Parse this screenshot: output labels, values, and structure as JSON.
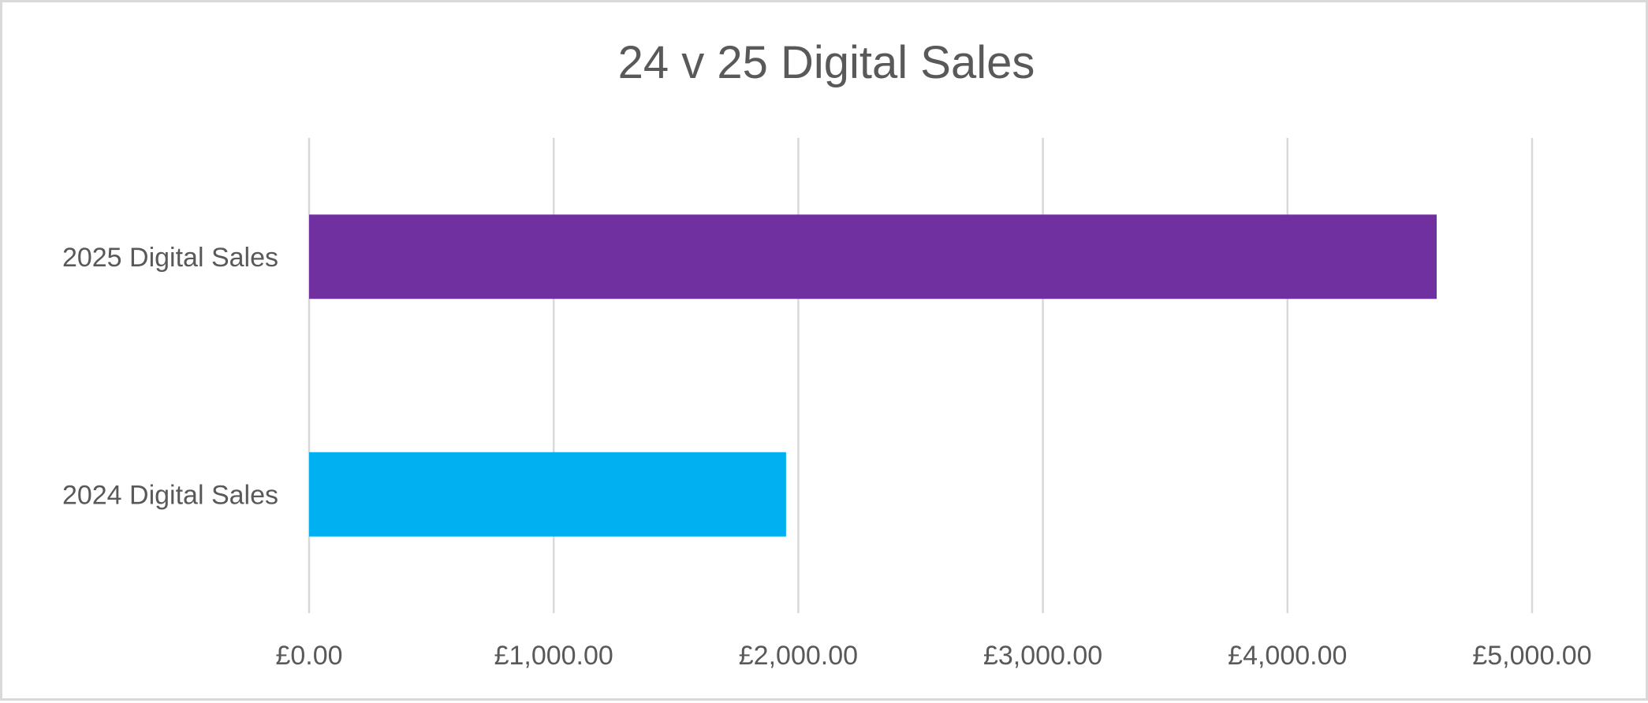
{
  "chart_data": {
    "type": "bar",
    "orientation": "horizontal",
    "title": "24 v 25 Digital Sales",
    "xlabel": "",
    "ylabel": "",
    "categories": [
      "2025 Digital Sales",
      "2024 Digital Sales"
    ],
    "values": [
      4610,
      1950
    ],
    "colors": [
      "#7030a0",
      "#00b0f0"
    ],
    "xlim": [
      0,
      5000
    ],
    "ticks": [
      0,
      1000,
      2000,
      3000,
      4000,
      5000
    ],
    "tick_labels": [
      "£0.00",
      "£1,000.00",
      "£2,000.00",
      "£3,000.00",
      "£4,000.00",
      "£5,000.00"
    ],
    "gridlines": true,
    "gridline_color": "#d9d9d9",
    "legend": "none"
  }
}
